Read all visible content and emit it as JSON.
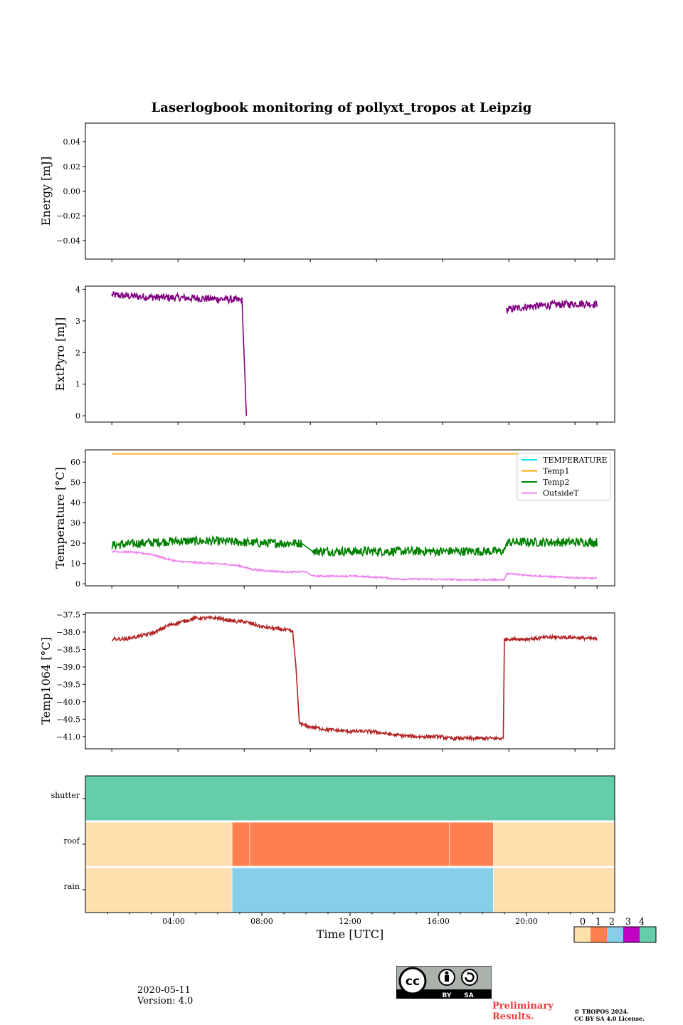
{
  "title": "Laserlogbook monitoring of pollyxt_tropos at Leipzig",
  "footer": {
    "date": "2020-05-11",
    "version": "Version: 4.0",
    "preliminary": [
      "Preliminary",
      "Results."
    ],
    "copyright": [
      "© TROPOS 2024.",
      "CC BY SA 4.0 License."
    ],
    "license_badge": {
      "cc": "cc",
      "by": "BY",
      "sa": "SA"
    }
  },
  "colors": {
    "extpyro": "#800080",
    "temperature": "#00e5ee",
    "temp1": "#ffa500",
    "temp2": "#008000",
    "outsideT": "#ee82ee",
    "temp1064": "#b22222",
    "status": [
      "#fedfae",
      "#ff7f50",
      "#87ceeb",
      "#c100c1",
      "#66cdaa"
    ],
    "preliminary": "#ee3b3b"
  },
  "chart_data": [
    {
      "type": "line",
      "name": "energy",
      "ylabel": "Energy [mJ]",
      "xlim": [
        0,
        24
      ],
      "ylim": [
        -0.055,
        0.055
      ],
      "yticks": [
        0.04,
        0.02,
        0.0,
        -0.02,
        -0.04
      ],
      "ytick_labels": [
        "0.04",
        "0.02",
        "0.00",
        "−0.02",
        "−0.04"
      ],
      "series": []
    },
    {
      "type": "line",
      "name": "extpyro",
      "ylabel": "ExtPyro [mJ]",
      "xlim": [
        0,
        24
      ],
      "ylim": [
        -0.2,
        4.1
      ],
      "yticks": [
        4,
        3,
        2,
        1,
        0
      ],
      "ytick_labels": [
        "4",
        "3",
        "2",
        "1",
        "0"
      ],
      "series": [
        {
          "name": "ExtPyro",
          "color_key": "extpyro",
          "x": [
            1.2,
            3.0,
            5.0,
            6.6,
            7.1,
            7.22,
            7.3
          ],
          "y": [
            3.82,
            3.75,
            3.72,
            3.68,
            3.65,
            1.5,
            0.0
          ],
          "noise": 0.12
        },
        {
          "name": "ExtPyro",
          "color_key": "extpyro",
          "x": [
            19.1,
            20.0,
            21.0,
            22.5,
            23.2
          ],
          "y": [
            3.35,
            3.45,
            3.5,
            3.55,
            3.52
          ],
          "noise": 0.12
        }
      ]
    },
    {
      "type": "line",
      "name": "temperature",
      "ylabel": "Temperature [°C]",
      "xlim": [
        0,
        24
      ],
      "ylim": [
        -1,
        66
      ],
      "yticks": [
        60,
        50,
        40,
        30,
        20,
        10,
        0
      ],
      "ytick_labels": [
        "60",
        "50",
        "40",
        "30",
        "20",
        "10",
        "0"
      ],
      "legend": [
        "TEMPERATURE",
        "Temp1",
        "Temp2",
        "OutsideT"
      ],
      "series": [
        {
          "name": "TEMPERATURE",
          "color_key": "temperature",
          "x": [],
          "y": []
        },
        {
          "name": "Temp1",
          "color_key": "temp1",
          "x": [
            1.2,
            23.2
          ],
          "y": [
            64,
            64
          ],
          "noise": 0
        },
        {
          "name": "Temp2",
          "color_key": "temp2",
          "x": [
            1.2,
            2.5,
            4.0,
            6.0,
            8.0,
            9.8,
            10.3,
            12.0,
            16.0,
            19.0,
            19.1,
            21.0,
            23.2
          ],
          "y": [
            19,
            20,
            21,
            21,
            20,
            20,
            16,
            16,
            16,
            16,
            20.5,
            20.5,
            20.5
          ],
          "noise": 2.2
        },
        {
          "name": "OutsideT",
          "color_key": "outsideT",
          "x": [
            1.2,
            2.2,
            3.0,
            3.6,
            4.2,
            5.0,
            6.5,
            7.0,
            7.6,
            8.4,
            9.2,
            10.0,
            10.3,
            12.0,
            13.5,
            14.0,
            16.0,
            17.0,
            19.0,
            19.1,
            21.0,
            23.2
          ],
          "y": [
            16,
            15.5,
            14.5,
            12.5,
            11,
            10.5,
            9.5,
            8.8,
            7,
            6.3,
            5.8,
            6,
            3.8,
            3.8,
            3.1,
            2.4,
            2.2,
            2.0,
            2.0,
            5.0,
            3.5,
            2.6
          ],
          "noise": 0.4
        }
      ]
    },
    {
      "type": "line",
      "name": "temp1064",
      "ylabel": "Temp1064 [°C]",
      "xlim": [
        0,
        24
      ],
      "ylim": [
        -41.35,
        -37.45
      ],
      "yticks": [
        -37.5,
        -38.0,
        -38.5,
        -39.0,
        -39.5,
        -40.0,
        -40.5,
        -41.0
      ],
      "ytick_labels": [
        "−37.5",
        "−38.0",
        "−38.5",
        "−39.0",
        "−39.5",
        "−40.0",
        "−40.5",
        "−41.0"
      ],
      "series": [
        {
          "name": "Temp1064",
          "color_key": "temp1064",
          "x": [
            1.2,
            1.8,
            2.6,
            3.2,
            3.8,
            4.4,
            5.0,
            6.0,
            6.8,
            7.2,
            8.0,
            9.2,
            9.4,
            9.55,
            9.7,
            10.0,
            11.0,
            12.0,
            13.0,
            14.0,
            15.0,
            16.0,
            16.5,
            18.0,
            18.95,
            19.0,
            20.0,
            21.0,
            22.0,
            23.2
          ],
          "y": [
            -38.2,
            -38.2,
            -38.1,
            -38.0,
            -37.8,
            -37.7,
            -37.6,
            -37.6,
            -37.7,
            -37.7,
            -37.85,
            -37.95,
            -38.0,
            -39.0,
            -40.6,
            -40.7,
            -40.8,
            -40.85,
            -40.85,
            -40.95,
            -41.0,
            -41.0,
            -41.05,
            -41.05,
            -41.05,
            -38.2,
            -38.2,
            -38.15,
            -38.15,
            -38.2
          ],
          "noise": 0.05
        }
      ]
    },
    {
      "type": "heatmap",
      "name": "status",
      "xlabel": "Time [UTC]",
      "xlim": [
        0,
        24
      ],
      "xticks": [
        4,
        8,
        12,
        16,
        20
      ],
      "xtick_labels": [
        "04:00",
        "08:00",
        "12:00",
        "16:00",
        "20:00"
      ],
      "rows": [
        "shutter",
        "roof",
        "rain"
      ],
      "segments": {
        "shutter": [
          {
            "start": 0,
            "end": 24,
            "value": 4
          }
        ],
        "roof": [
          {
            "start": 0,
            "end": 6.65,
            "value": 0
          },
          {
            "start": 6.65,
            "end": 7.45,
            "value": 1
          },
          {
            "start": 7.45,
            "end": 16.5,
            "value": 1
          },
          {
            "start": 16.5,
            "end": 18.5,
            "value": 1
          },
          {
            "start": 18.5,
            "end": 24,
            "value": 0
          }
        ],
        "rain": [
          {
            "start": 0,
            "end": 6.65,
            "value": 0
          },
          {
            "start": 6.65,
            "end": 18.5,
            "value": 2
          },
          {
            "start": 18.5,
            "end": 24,
            "value": 0
          }
        ]
      },
      "colorbar_labels": [
        "0",
        "1",
        "2",
        "3",
        "4"
      ]
    }
  ]
}
